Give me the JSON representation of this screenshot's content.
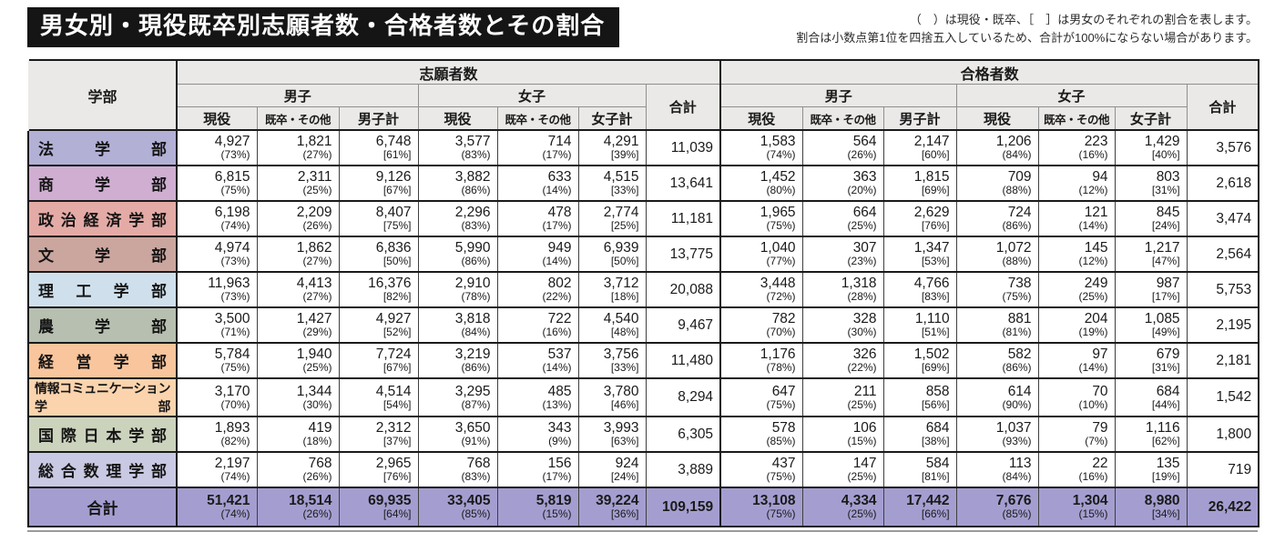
{
  "title": "男女別・現役既卒別志願者数・合格者数とその割合",
  "notes": {
    "line1": "（　）は現役・既卒、［　］は男女のそれぞれの割合を表します。",
    "line2": "割合は小数点第1位を四捨五入しているため、合計が100%にならない場合があります。"
  },
  "header": {
    "faculty": "学部",
    "applicants": "志願者数",
    "accepted": "合格者数",
    "male": "男子",
    "female": "女子",
    "current": "現役",
    "graduate": "既卒・その他",
    "male_total": "男子計",
    "female_total": "女子計",
    "total": "合計"
  },
  "colors": {
    "header_bg": "#eae9e7",
    "total_row_bg": "#a49ed0",
    "border_dark": "#1a1a1a"
  },
  "rows": [
    {
      "name": "法学部",
      "color": "#b3b0d6",
      "app": [
        [
          "4,927",
          "(73%)"
        ],
        [
          "1,821",
          "(27%)"
        ],
        [
          "6,748",
          "[61%]"
        ],
        [
          "3,577",
          "(83%)"
        ],
        [
          "714",
          "(17%)"
        ],
        [
          "4,291",
          "[39%]"
        ]
      ],
      "app_total": "11,039",
      "pass": [
        [
          "1,583",
          "(74%)"
        ],
        [
          "564",
          "(26%)"
        ],
        [
          "2,147",
          "[60%]"
        ],
        [
          "1,206",
          "(84%)"
        ],
        [
          "223",
          "(16%)"
        ],
        [
          "1,429",
          "[40%]"
        ]
      ],
      "pass_total": "3,576"
    },
    {
      "name": "商学部",
      "color": "#cfaed2",
      "app": [
        [
          "6,815",
          "(75%)"
        ],
        [
          "2,311",
          "(25%)"
        ],
        [
          "9,126",
          "[67%]"
        ],
        [
          "3,882",
          "(86%)"
        ],
        [
          "633",
          "(14%)"
        ],
        [
          "4,515",
          "[33%]"
        ]
      ],
      "app_total": "13,641",
      "pass": [
        [
          "1,452",
          "(80%)"
        ],
        [
          "363",
          "(20%)"
        ],
        [
          "1,815",
          "[69%]"
        ],
        [
          "709",
          "(88%)"
        ],
        [
          "94",
          "(12%)"
        ],
        [
          "803",
          "[31%]"
        ]
      ],
      "pass_total": "2,618"
    },
    {
      "name": "政治経済学部",
      "color": "#e4aba6",
      "app": [
        [
          "6,198",
          "(74%)"
        ],
        [
          "2,209",
          "(26%)"
        ],
        [
          "8,407",
          "[75%]"
        ],
        [
          "2,296",
          "(83%)"
        ],
        [
          "478",
          "(17%)"
        ],
        [
          "2,774",
          "[25%]"
        ]
      ],
      "app_total": "11,181",
      "pass": [
        [
          "1,965",
          "(75%)"
        ],
        [
          "664",
          "(25%)"
        ],
        [
          "2,629",
          "[76%]"
        ],
        [
          "724",
          "(86%)"
        ],
        [
          "121",
          "(14%)"
        ],
        [
          "845",
          "[24%]"
        ]
      ],
      "pass_total": "3,474"
    },
    {
      "name": "文学部",
      "color": "#cba69e",
      "app": [
        [
          "4,974",
          "(73%)"
        ],
        [
          "1,862",
          "(27%)"
        ],
        [
          "6,836",
          "[50%]"
        ],
        [
          "5,990",
          "(86%)"
        ],
        [
          "949",
          "(14%)"
        ],
        [
          "6,939",
          "[50%]"
        ]
      ],
      "app_total": "13,775",
      "pass": [
        [
          "1,040",
          "(77%)"
        ],
        [
          "307",
          "(23%)"
        ],
        [
          "1,347",
          "[53%]"
        ],
        [
          "1,072",
          "(88%)"
        ],
        [
          "145",
          "(12%)"
        ],
        [
          "1,217",
          "[47%]"
        ]
      ],
      "pass_total": "2,564"
    },
    {
      "name": "理工学部",
      "color": "#cfe0ec",
      "app": [
        [
          "11,963",
          "(73%)"
        ],
        [
          "4,413",
          "(27%)"
        ],
        [
          "16,376",
          "[82%]"
        ],
        [
          "2,910",
          "(78%)"
        ],
        [
          "802",
          "(22%)"
        ],
        [
          "3,712",
          "[18%]"
        ]
      ],
      "app_total": "20,088",
      "pass": [
        [
          "3,448",
          "(72%)"
        ],
        [
          "1,318",
          "(28%)"
        ],
        [
          "4,766",
          "[83%]"
        ],
        [
          "738",
          "(75%)"
        ],
        [
          "249",
          "(25%)"
        ],
        [
          "987",
          "[17%]"
        ]
      ],
      "pass_total": "5,753"
    },
    {
      "name": "農学部",
      "color": "#b7bfb0",
      "app": [
        [
          "3,500",
          "(71%)"
        ],
        [
          "1,427",
          "(29%)"
        ],
        [
          "4,927",
          "[52%]"
        ],
        [
          "3,818",
          "(84%)"
        ],
        [
          "722",
          "(16%)"
        ],
        [
          "4,540",
          "[48%]"
        ]
      ],
      "app_total": "9,467",
      "pass": [
        [
          "782",
          "(70%)"
        ],
        [
          "328",
          "(30%)"
        ],
        [
          "1,110",
          "[51%]"
        ],
        [
          "881",
          "(81%)"
        ],
        [
          "204",
          "(19%)"
        ],
        [
          "1,085",
          "[49%]"
        ]
      ],
      "pass_total": "2,195"
    },
    {
      "name": "経営学部",
      "color": "#f9c59c",
      "app": [
        [
          "5,784",
          "(75%)"
        ],
        [
          "1,940",
          "(25%)"
        ],
        [
          "7,724",
          "[67%]"
        ],
        [
          "3,219",
          "(86%)"
        ],
        [
          "537",
          "(14%)"
        ],
        [
          "3,756",
          "[33%]"
        ]
      ],
      "app_total": "11,480",
      "pass": [
        [
          "1,176",
          "(78%)"
        ],
        [
          "326",
          "(22%)"
        ],
        [
          "1,502",
          "[69%]"
        ],
        [
          "582",
          "(86%)"
        ],
        [
          "97",
          "(14%)"
        ],
        [
          "679",
          "[31%]"
        ]
      ],
      "pass_total": "2,181"
    },
    {
      "name": "情報コミュニケーション学部",
      "color": "#fbd4ae",
      "app": [
        [
          "3,170",
          "(70%)"
        ],
        [
          "1,344",
          "(30%)"
        ],
        [
          "4,514",
          "[54%]"
        ],
        [
          "3,295",
          "(87%)"
        ],
        [
          "485",
          "(13%)"
        ],
        [
          "3,780",
          "[46%]"
        ]
      ],
      "app_total": "8,294",
      "pass": [
        [
          "647",
          "(75%)"
        ],
        [
          "211",
          "(25%)"
        ],
        [
          "858",
          "[56%]"
        ],
        [
          "614",
          "(90%)"
        ],
        [
          "70",
          "(10%)"
        ],
        [
          "684",
          "[44%]"
        ]
      ],
      "pass_total": "1,542"
    },
    {
      "name": "国際日本学部",
      "color": "#ccd3bd",
      "app": [
        [
          "1,893",
          "(82%)"
        ],
        [
          "419",
          "(18%)"
        ],
        [
          "2,312",
          "[37%]"
        ],
        [
          "3,650",
          "(91%)"
        ],
        [
          "343",
          "(9%)"
        ],
        [
          "3,993",
          "[63%]"
        ]
      ],
      "app_total": "6,305",
      "pass": [
        [
          "578",
          "(85%)"
        ],
        [
          "106",
          "(15%)"
        ],
        [
          "684",
          "[38%]"
        ],
        [
          "1,037",
          "(93%)"
        ],
        [
          "79",
          "(7%)"
        ],
        [
          "1,116",
          "[62%]"
        ]
      ],
      "pass_total": "1,800"
    },
    {
      "name": "総合数理学部",
      "color": "#c9c9e3",
      "app": [
        [
          "2,197",
          "(74%)"
        ],
        [
          "768",
          "(26%)"
        ],
        [
          "2,965",
          "[76%]"
        ],
        [
          "768",
          "(83%)"
        ],
        [
          "156",
          "(17%)"
        ],
        [
          "924",
          "[24%]"
        ]
      ],
      "app_total": "3,889",
      "pass": [
        [
          "437",
          "(75%)"
        ],
        [
          "147",
          "(25%)"
        ],
        [
          "584",
          "[81%]"
        ],
        [
          "113",
          "(84%)"
        ],
        [
          "22",
          "(16%)"
        ],
        [
          "135",
          "[19%]"
        ]
      ],
      "pass_total": "719"
    }
  ],
  "total_row": {
    "name": "合計",
    "color": "#a49ed0",
    "app": [
      [
        "51,421",
        "(74%)"
      ],
      [
        "18,514",
        "(26%)"
      ],
      [
        "69,935",
        "[64%]"
      ],
      [
        "33,405",
        "(85%)"
      ],
      [
        "5,819",
        "(15%)"
      ],
      [
        "39,224",
        "[36%]"
      ]
    ],
    "app_total": "109,159",
    "pass": [
      [
        "13,108",
        "(75%)"
      ],
      [
        "4,334",
        "(25%)"
      ],
      [
        "17,442",
        "[66%]"
      ],
      [
        "7,676",
        "(85%)"
      ],
      [
        "1,304",
        "(15%)"
      ],
      [
        "8,980",
        "[34%]"
      ]
    ],
    "pass_total": "26,422"
  }
}
